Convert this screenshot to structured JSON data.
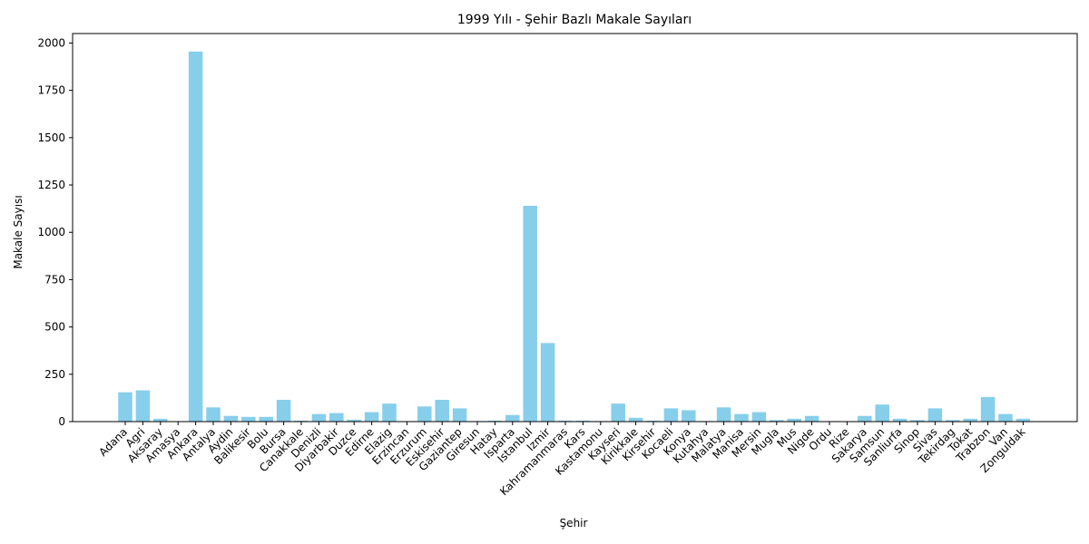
{
  "chart_data": {
    "type": "bar",
    "title": "1999 Yılı - Şehir Bazlı Makale Sayıları",
    "xlabel": "Şehir",
    "ylabel": "Makale Sayısı",
    "ylim": [
      0,
      2050
    ],
    "yticks": [
      0,
      250,
      500,
      750,
      1000,
      1250,
      1500,
      1750,
      2000
    ],
    "grid": false,
    "bar_color": "#87ceeb",
    "categories": [
      "Adana",
      "Agri",
      "Aksaray",
      "Amasya",
      "Ankara",
      "Antalya",
      "Aydin",
      "Balikesir",
      "Bolu",
      "Bursa",
      "Canakkale",
      "Denizli",
      "Diyarbakir",
      "Duzce",
      "Edirne",
      "Elazig",
      "Erzincan",
      "Erzurum",
      "Eskisehir",
      "Gaziantep",
      "Giresun",
      "Hatay",
      "Isparta",
      "Istanbul",
      "Izmir",
      "Kahramanmaras",
      "Kars",
      "Kastamonu",
      "Kayseri",
      "Kirikkale",
      "Kirsehir",
      "Kocaeli",
      "Konya",
      "Kutahya",
      "Malatya",
      "Manisa",
      "Mersin",
      "Mugla",
      "Mus",
      "Nigde",
      "Ordu",
      "Rize",
      "Sakarya",
      "Samsun",
      "Sanliurfa",
      "Sinop",
      "Sivas",
      "Tekirdag",
      "Tokat",
      "Trabzon",
      "Van",
      "Zonguldak"
    ],
    "values": [
      155,
      165,
      15,
      2,
      1955,
      75,
      30,
      25,
      25,
      115,
      5,
      40,
      45,
      10,
      50,
      95,
      2,
      80,
      115,
      70,
      3,
      5,
      35,
      1140,
      415,
      5,
      5,
      3,
      95,
      20,
      5,
      70,
      60,
      3,
      75,
      40,
      50,
      8,
      15,
      30,
      2,
      2,
      30,
      90,
      15,
      8,
      70,
      8,
      15,
      130,
      40,
      15
    ]
  }
}
